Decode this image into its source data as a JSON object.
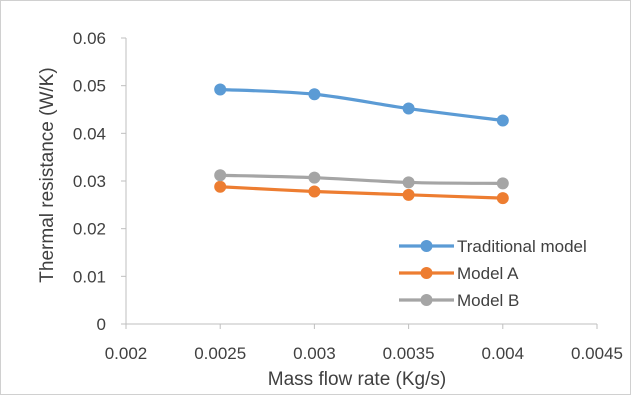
{
  "chart_data": {
    "type": "line",
    "title": "",
    "xlabel": "Mass flow rate (Kg/s)",
    "ylabel": "Thermal resistance (W/K)",
    "xlim": [
      0.002,
      0.0045
    ],
    "ylim": [
      0,
      0.06
    ],
    "x_ticks": [
      "0.002",
      "0.0025",
      "0.003",
      "0.0035",
      "0.004",
      "0.0045"
    ],
    "y_ticks": [
      "0",
      "0.01",
      "0.02",
      "0.03",
      "0.04",
      "0.05",
      "0.06"
    ],
    "x": [
      0.0025,
      0.003,
      0.0035,
      0.004
    ],
    "series": [
      {
        "name": "Traditional model",
        "color": "#5b9bd5",
        "values": [
          0.0492,
          0.0482,
          0.0452,
          0.0427
        ]
      },
      {
        "name": "Model A",
        "color": "#ed7d31",
        "values": [
          0.0288,
          0.0278,
          0.0271,
          0.0264
        ]
      },
      {
        "name": "Model B",
        "color": "#a5a5a5",
        "values": [
          0.0312,
          0.0307,
          0.0297,
          0.0295
        ]
      }
    ],
    "grid": false,
    "legend_position": "bottom-right"
  }
}
